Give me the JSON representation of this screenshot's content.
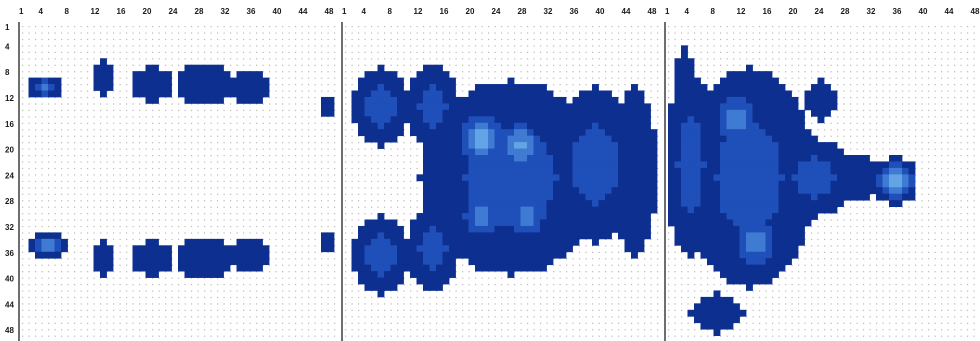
{
  "chart_data": {
    "type": "heatmap",
    "title": "",
    "grid": true,
    "colors": {
      "background": "#ffffff",
      "grid_dot": "#b8b8b8",
      "panel_border": "#6e6e6e",
      "levels": [
        "#0d2f8f",
        "#1f4fb8",
        "#3f7bd2",
        "#63a4e6",
        "#8fd0f2"
      ]
    },
    "x_ticks": [
      "1",
      "4",
      "8",
      "12",
      "16",
      "20",
      "24",
      "28",
      "32",
      "36",
      "40",
      "44",
      "48"
    ],
    "y_ticks": [
      "1",
      "4",
      "8",
      "12",
      "16",
      "20",
      "24",
      "28",
      "32",
      "36",
      "40",
      "44",
      "48"
    ],
    "panels": [
      {
        "blobs": [
          {
            "x": 4,
            "y": 10,
            "rx": 2.5,
            "ry": 1.8,
            "peak": 3
          },
          {
            "x": 13,
            "y": 8.5,
            "rx": 1.6,
            "ry": 2.5,
            "peak": 1
          },
          {
            "x": 20.5,
            "y": 9.5,
            "rx": 3.2,
            "ry": 2.8,
            "peak": 1
          },
          {
            "x": 28.5,
            "y": 9.5,
            "rx": 4.2,
            "ry": 3.2,
            "peak": 1
          },
          {
            "x": 35.5,
            "y": 10,
            "rx": 3.2,
            "ry": 2.8,
            "peak": 1
          },
          {
            "x": 4.5,
            "y": 34.5,
            "rx": 3.2,
            "ry": 1.8,
            "peak": 3
          },
          {
            "x": 13,
            "y": 36.5,
            "rx": 1.6,
            "ry": 2.5,
            "peak": 1
          },
          {
            "x": 20.5,
            "y": 36.5,
            "rx": 3.2,
            "ry": 2.8,
            "peak": 1
          },
          {
            "x": 28.5,
            "y": 36.5,
            "rx": 4.2,
            "ry": 3.2,
            "peak": 1
          },
          {
            "x": 35.5,
            "y": 36,
            "rx": 3.2,
            "ry": 2.5,
            "peak": 1
          },
          {
            "x": 47.5,
            "y": 13,
            "rx": 1.2,
            "ry": 2,
            "peak": 1
          },
          {
            "x": 47.5,
            "y": 34,
            "rx": 1.2,
            "ry": 2,
            "peak": 1
          }
        ]
      },
      {
        "blobs": [
          {
            "x": 6,
            "y": 13,
            "rx": 4.5,
            "ry": 6,
            "peak": 2
          },
          {
            "x": 6,
            "y": 36,
            "rx": 4.5,
            "ry": 6,
            "peak": 2
          },
          {
            "x": 14,
            "y": 13,
            "rx": 4,
            "ry": 6.5,
            "peak": 2
          },
          {
            "x": 14,
            "y": 35,
            "rx": 4,
            "ry": 6.5,
            "peak": 2
          },
          {
            "x": 26,
            "y": 24,
            "rx": 14,
            "ry": 15,
            "peak": 2
          },
          {
            "x": 21.5,
            "y": 18,
            "rx": 4.5,
            "ry": 5,
            "peak": 4
          },
          {
            "x": 27.5,
            "y": 19,
            "rx": 3.8,
            "ry": 4.5,
            "peak": 4
          },
          {
            "x": 21.5,
            "y": 30,
            "rx": 3.8,
            "ry": 4.5,
            "peak": 3
          },
          {
            "x": 28.5,
            "y": 30,
            "rx": 3.8,
            "ry": 4.5,
            "peak": 3
          },
          {
            "x": 39,
            "y": 22,
            "rx": 7,
            "ry": 12,
            "peak": 2
          },
          {
            "x": 45,
            "y": 23,
            "rx": 3.5,
            "ry": 13,
            "peak": 1
          }
        ]
      },
      {
        "blobs": [
          {
            "x": 3,
            "y": 8,
            "rx": 1.5,
            "ry": 4,
            "peak": 1
          },
          {
            "x": 4,
            "y": 22,
            "rx": 4,
            "ry": 14,
            "peak": 2
          },
          {
            "x": 13,
            "y": 24,
            "rx": 10,
            "ry": 17,
            "peak": 2
          },
          {
            "x": 11,
            "y": 15,
            "rx": 4,
            "ry": 5,
            "peak": 3
          },
          {
            "x": 14,
            "y": 34,
            "rx": 4,
            "ry": 5,
            "peak": 3
          },
          {
            "x": 23,
            "y": 24,
            "rx": 6,
            "ry": 6,
            "peak": 2
          },
          {
            "x": 30,
            "y": 24,
            "rx": 3.5,
            "ry": 3.5,
            "peak": 1
          },
          {
            "x": 35.5,
            "y": 24.5,
            "rx": 3.5,
            "ry": 3.8,
            "peak": 4
          },
          {
            "x": 8,
            "y": 45,
            "rx": 4,
            "ry": 3,
            "peak": 1
          },
          {
            "x": 24,
            "y": 12,
            "rx": 2.5,
            "ry": 3,
            "peak": 1
          }
        ]
      }
    ]
  }
}
